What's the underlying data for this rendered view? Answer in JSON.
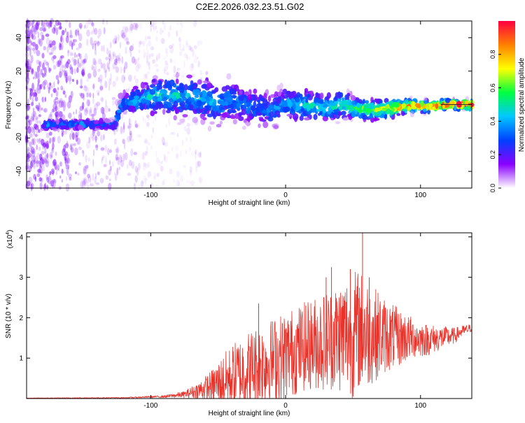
{
  "page_title": "C2E2.2026.032.23.51.G02",
  "colors": {
    "signal_line": "#e8322a",
    "frame": "#000000",
    "colormap": [
      "#ffffff",
      "#8a00ff",
      "#0040ff",
      "#00c8ff",
      "#00ff40",
      "#ffff00",
      "#ff8000",
      "#ff0040"
    ]
  },
  "chart_data": [
    {
      "id": "spectrogram",
      "type": "heatmap",
      "title": "C2E2.2026.032.23.51.G02",
      "xlabel": "Height of straight line (km)",
      "ylabel": "Frequency (Hz)",
      "xlim": [
        -192,
        138
      ],
      "ylim": [
        -50,
        50
      ],
      "x_ticks": [
        -100,
        0,
        100
      ],
      "y_ticks": [
        -40,
        -20,
        0,
        20,
        40
      ],
      "x_tick_labels": [
        "-100",
        "0",
        "100"
      ],
      "y_tick_labels": [
        "-40",
        "-20",
        "0",
        "20",
        "40"
      ],
      "ridge": {
        "x": [
          -192,
          -178,
          -160,
          -140,
          -126,
          -122,
          -110,
          -95,
          -80,
          -65,
          -50,
          -40,
          -30,
          -20,
          -10,
          0,
          10,
          20,
          30,
          40,
          50,
          60,
          70,
          80,
          90,
          100,
          110,
          120,
          130,
          138
        ],
        "y": [
          -12,
          -12,
          -12,
          -12,
          -12,
          1,
          2,
          6,
          5,
          4,
          1,
          3,
          -1,
          -2,
          -3,
          1,
          0,
          -1,
          -2,
          0,
          -2,
          -3,
          -3,
          -2,
          -1,
          -1,
          -1,
          0,
          0,
          0
        ],
        "spread": [
          2,
          2,
          2,
          2,
          2,
          4,
          6,
          8,
          9,
          9,
          10,
          10,
          8,
          8,
          8,
          7,
          7,
          7,
          6,
          6,
          5,
          5,
          4,
          4,
          3,
          3,
          2,
          2,
          2,
          2
        ],
        "amplitude": [
          0.3,
          0.3,
          0.3,
          0.3,
          0.3,
          0.35,
          0.4,
          0.42,
          0.4,
          0.38,
          0.35,
          0.33,
          0.3,
          0.3,
          0.32,
          0.35,
          0.4,
          0.45,
          0.45,
          0.48,
          0.52,
          0.58,
          0.65,
          0.7,
          0.75,
          0.8,
          0.85,
          0.9,
          0.95,
          0.95
        ]
      }
    },
    {
      "id": "colorbar",
      "type": "heatmap",
      "label": "Normalized spectral amplitude",
      "range": [
        0,
        1
      ],
      "ticks": [
        0.0,
        0.2,
        0.4,
        0.6,
        0.8
      ],
      "tick_labels": [
        "0.0",
        "0.2",
        "0.4",
        "0.6",
        "0.8"
      ]
    },
    {
      "id": "snr",
      "type": "line",
      "xlabel": "Height of straight line (km)",
      "ylabel": "SNR (10 * v/v)",
      "scale_label": "(x10",
      "scale_exponent": "4",
      "scale_close": ")",
      "xlim": [
        -192,
        138
      ],
      "ylim": [
        0,
        4.1
      ],
      "x_ticks": [
        -100,
        0,
        100
      ],
      "y_ticks": [
        1,
        2,
        3,
        4
      ],
      "x_tick_labels": [
        "-100",
        "0",
        "100"
      ],
      "y_tick_labels": [
        "1",
        "2",
        "3",
        "4"
      ],
      "envelope": {
        "x": [
          -192,
          -120,
          -90,
          -75,
          -65,
          -55,
          -45,
          -35,
          -25,
          -15,
          -5,
          5,
          15,
          25,
          35,
          45,
          50,
          55,
          60,
          65,
          75,
          85,
          95,
          105,
          115,
          125,
          130,
          138
        ],
        "mean": [
          0.01,
          0.02,
          0.05,
          0.1,
          0.2,
          0.3,
          0.45,
          0.6,
          0.75,
          0.9,
          1.0,
          1.15,
          1.3,
          1.4,
          1.5,
          1.6,
          1.6,
          1.7,
          1.6,
          1.6,
          1.55,
          1.5,
          1.5,
          1.45,
          1.5,
          1.55,
          1.65,
          1.75
        ],
        "amp": [
          0.005,
          0.01,
          0.03,
          0.08,
          0.2,
          0.4,
          0.7,
          0.9,
          1.0,
          1.0,
          1.1,
          1.1,
          1.1,
          1.2,
          1.3,
          1.5,
          1.6,
          1.5,
          1.4,
          1.2,
          0.9,
          0.7,
          0.5,
          0.4,
          0.3,
          0.2,
          0.15,
          0.1
        ]
      },
      "peaks": [
        {
          "x": -20,
          "y": 2.35
        },
        {
          "x": 15,
          "y": 2.3
        },
        {
          "x": 30,
          "y": 3.0
        },
        {
          "x": 34,
          "y": 3.25
        },
        {
          "x": 48,
          "y": 3.2
        },
        {
          "x": 57,
          "y": 4.1
        },
        {
          "x": 62,
          "y": 3.0
        }
      ]
    }
  ]
}
